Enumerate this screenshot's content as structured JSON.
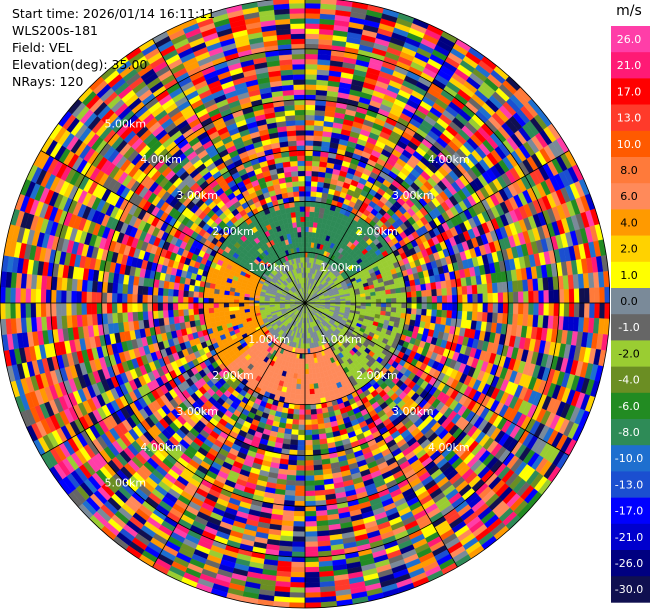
{
  "info": {
    "start_time": "Start time: 2026/01/14 16:11:11",
    "station": "WLS200s-181",
    "field": "Field: VEL",
    "elevation": "Elevation(deg): 35.00",
    "nrays": "NRays: 120"
  },
  "chart_data": {
    "type": "heatmap",
    "subtype": "polar-ppi",
    "field": "VEL",
    "units": "m/s",
    "elevation_deg": 35.0,
    "n_rays": 120,
    "range_rings_km": [
      1,
      2,
      3,
      4,
      5,
      6
    ],
    "ring_labels": [
      {
        "text": "1.00km",
        "km": 1,
        "angles": [
          315,
          45,
          135,
          225
        ]
      },
      {
        "text": "2.00km",
        "km": 2,
        "angles": [
          315,
          45,
          135,
          225
        ]
      },
      {
        "text": "3.00km",
        "km": 3,
        "angles": [
          315,
          45,
          135,
          225
        ]
      },
      {
        "text": "4.00km",
        "km": 4,
        "angles": [
          315,
          45,
          135,
          225
        ]
      },
      {
        "text": "5.00km",
        "km": 5,
        "angles": [
          315,
          225
        ]
      }
    ],
    "max_range_km": 6.0,
    "colorbar": {
      "label": "m/s",
      "ticks": [
        "26.0",
        "21.0",
        "17.0",
        "13.0",
        "10.0",
        "8.0",
        "6.0",
        "4.0",
        "2.0",
        "1.0",
        "0.0",
        "-1.0",
        "-2.0",
        "-4.0",
        "-6.0",
        "-8.0",
        "-10.0",
        "-13.0",
        "-17.0",
        "-21.0",
        "-26.0",
        "-30.0"
      ],
      "colors": [
        "#ff3ea8",
        "#ff1a75",
        "#ff0000",
        "#ff3a2a",
        "#ff5a00",
        "#ff7a3a",
        "#ff8a5a",
        "#ff9a00",
        "#ffd200",
        "#ffff00",
        "#7a8a99",
        "#666666",
        "#9acd32",
        "#6b8e23",
        "#228b22",
        "#2e8b57",
        "#1e6fcf",
        "#1b4fd0",
        "#0000ff",
        "#0000cd",
        "#000080",
        "#101050"
      ]
    },
    "near_field_km": 2.0,
    "near_field_velocities": {
      "north": -8.0,
      "east": -2.0,
      "south": 6.0,
      "west": 4.0
    }
  }
}
